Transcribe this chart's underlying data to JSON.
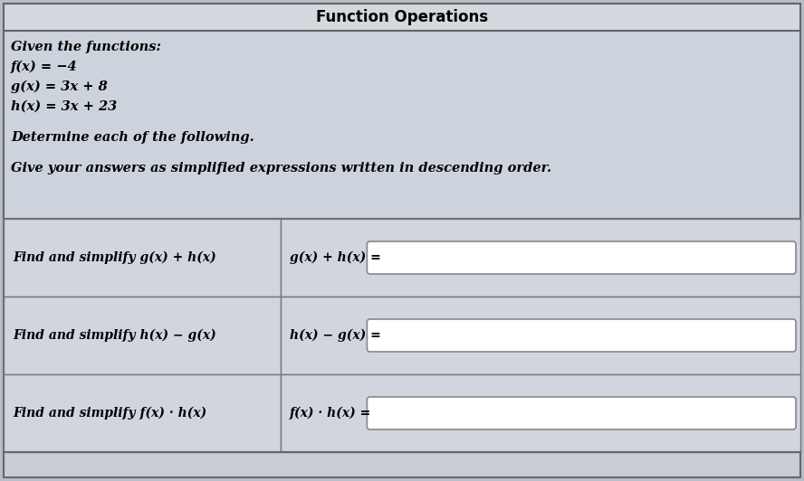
{
  "title": "Function Operations",
  "background_color": "#b8bec8",
  "outer_bg": "#c0c6d0",
  "title_bar_bg": "#d8dae0",
  "info_bg": "#cdd3dc",
  "table_row_bg": "#d0d5de",
  "input_box_bg": "#ffffff",
  "border_color": "#888888",
  "title_fontsize": 12,
  "body_fontsize": 10.5,
  "given_text": "Given the functions:",
  "f_text": "f(x) = −4",
  "g_text": "g(x) = 3x + 8",
  "h_text": "h(x) = 3x + 23",
  "determine_text": "Determine each of the following.",
  "give_text": "Give your answers as simplified expressions written in descending order.",
  "rows": [
    {
      "left": "Find and simplify g(x) + h(x)",
      "right_label": "g(x) + h(x) ="
    },
    {
      "left": "Find and simplify h(x) − g(x)",
      "right_label": "h(x) − g(x) ="
    },
    {
      "left": "Find and simplify f(x) · h(x)",
      "right_label": "f(x) · h(x) ="
    }
  ]
}
